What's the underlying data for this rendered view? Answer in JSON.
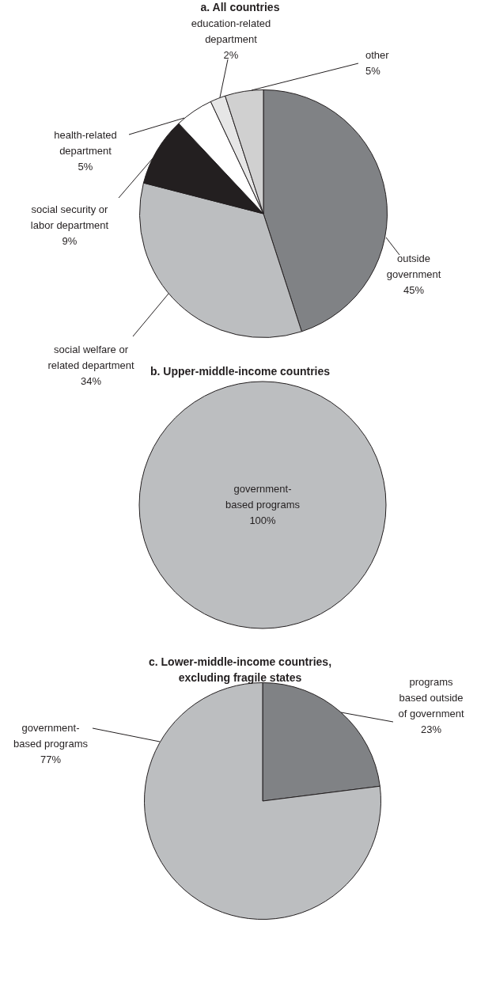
{
  "chart_data": [
    {
      "type": "pie",
      "title": "a. All countries",
      "categories": [
        "outside government",
        "social welfare or related department",
        "social security or labor department",
        "health-related department",
        "education-related department",
        "other"
      ],
      "values": [
        45,
        34,
        9,
        5,
        2,
        5
      ],
      "colors": [
        "#808285",
        "#bcbec0",
        "#231f20",
        "#ffffff",
        "#e6e6e6",
        "#d0d0d0"
      ],
      "value_labels": [
        "45%",
        "34%",
        "9%",
        "5%",
        "2%",
        "5%"
      ]
    },
    {
      "type": "pie",
      "title": "b. Upper-middle-income countries",
      "categories": [
        "government-based programs"
      ],
      "values": [
        100
      ],
      "colors": [
        "#bcbec0"
      ],
      "value_labels": [
        "100%"
      ]
    },
    {
      "type": "pie",
      "title": "c. Lower-middle-income countries, excluding fragile states",
      "categories": [
        "programs based outside of government",
        "government-based programs"
      ],
      "values": [
        23,
        77
      ],
      "colors": [
        "#808285",
        "#bcbec0"
      ],
      "value_labels": [
        "23%",
        "77%"
      ]
    }
  ]
}
